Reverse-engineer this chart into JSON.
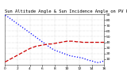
{
  "title": "Sun Altitude Angle & Sun Incidence Angle on PV Panels",
  "background_color": "#ffffff",
  "grid_color": "#bbbbbb",
  "blue_line_x": [
    0,
    0.5,
    1,
    1.5,
    2,
    2.5,
    3,
    3.5,
    4,
    4.5,
    5,
    5.5,
    6,
    6.5,
    7,
    7.5,
    8,
    8.5,
    9,
    9.5,
    10,
    10.5,
    11,
    11.5,
    12,
    12.5,
    13,
    13.5,
    14,
    14.5,
    15,
    15.5,
    16
  ],
  "blue_line_y": [
    88,
    85,
    81,
    77,
    73,
    69,
    65,
    61,
    57,
    53,
    49,
    45,
    41,
    37,
    33,
    29,
    26,
    24,
    22,
    20,
    18,
    16,
    15,
    14,
    13,
    12,
    10,
    8,
    7,
    5,
    4,
    5,
    7
  ],
  "red_line_x": [
    0,
    0.5,
    1,
    1.5,
    2,
    2.5,
    3,
    3.5,
    4,
    4.5,
    5,
    5.5,
    6,
    6.5,
    7,
    7.5,
    8,
    8.5,
    9,
    9.5,
    10,
    10.5,
    11,
    11.5,
    12,
    12.5,
    13,
    13.5,
    14,
    14.5,
    15,
    15.5,
    16
  ],
  "red_line_y": [
    5,
    8,
    11,
    14,
    17,
    20,
    23,
    26,
    29,
    31,
    33,
    34,
    35,
    36,
    37,
    37,
    38,
    39,
    40,
    41,
    42,
    42,
    42,
    41,
    41,
    40,
    40,
    40,
    40,
    40,
    40,
    40,
    40
  ],
  "ylim": [
    0,
    90
  ],
  "xlim": [
    0,
    16
  ],
  "ytick_vals": [
    10,
    20,
    30,
    40,
    50,
    60,
    70,
    80,
    90
  ],
  "xtick_vals": [
    0,
    2,
    4,
    6,
    8,
    10,
    12,
    14,
    16
  ],
  "title_fontsize": 4.0,
  "tick_fontsize": 3.2,
  "line_width": 0.9,
  "blue_color": "#0000ff",
  "red_color": "#cc0000"
}
